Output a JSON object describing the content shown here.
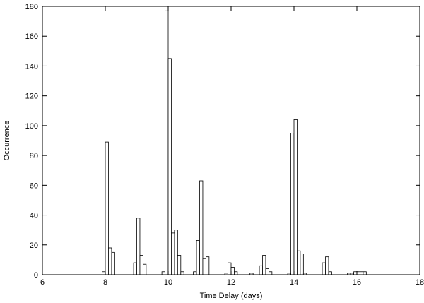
{
  "chart_data": {
    "type": "bar",
    "title": "",
    "xlabel": "Time Delay (days)",
    "ylabel": "Occurrence",
    "xlim": [
      6,
      18
    ],
    "ylim": [
      0,
      180
    ],
    "xticks": [
      6,
      8,
      10,
      12,
      14,
      16,
      18
    ],
    "yticks": [
      0,
      20,
      40,
      60,
      80,
      100,
      120,
      140,
      160,
      180
    ],
    "bin_width": 0.1,
    "grid": false,
    "legend": "none",
    "bar_color": "#ffffff",
    "bar_edge_color": "#000000",
    "bins": [
      {
        "x": 7.9,
        "y": 2
      },
      {
        "x": 8.0,
        "y": 89
      },
      {
        "x": 8.1,
        "y": 18
      },
      {
        "x": 8.2,
        "y": 15
      },
      {
        "x": 8.9,
        "y": 8
      },
      {
        "x": 9.0,
        "y": 38
      },
      {
        "x": 9.1,
        "y": 13
      },
      {
        "x": 9.2,
        "y": 7
      },
      {
        "x": 9.8,
        "y": 2
      },
      {
        "x": 9.9,
        "y": 177
      },
      {
        "x": 10.0,
        "y": 145
      },
      {
        "x": 10.1,
        "y": 28
      },
      {
        "x": 10.2,
        "y": 30
      },
      {
        "x": 10.3,
        "y": 13
      },
      {
        "x": 10.4,
        "y": 2
      },
      {
        "x": 10.8,
        "y": 2
      },
      {
        "x": 10.9,
        "y": 23
      },
      {
        "x": 11.0,
        "y": 63
      },
      {
        "x": 11.1,
        "y": 11
      },
      {
        "x": 11.2,
        "y": 12
      },
      {
        "x": 11.8,
        "y": 1
      },
      {
        "x": 11.9,
        "y": 8
      },
      {
        "x": 12.0,
        "y": 5
      },
      {
        "x": 12.1,
        "y": 2
      },
      {
        "x": 12.6,
        "y": 1
      },
      {
        "x": 12.9,
        "y": 6
      },
      {
        "x": 13.0,
        "y": 13
      },
      {
        "x": 13.1,
        "y": 4
      },
      {
        "x": 13.2,
        "y": 2
      },
      {
        "x": 13.8,
        "y": 1
      },
      {
        "x": 13.9,
        "y": 95
      },
      {
        "x": 14.0,
        "y": 104
      },
      {
        "x": 14.1,
        "y": 16
      },
      {
        "x": 14.2,
        "y": 14
      },
      {
        "x": 14.3,
        "y": 1
      },
      {
        "x": 14.9,
        "y": 8
      },
      {
        "x": 15.0,
        "y": 12
      },
      {
        "x": 15.1,
        "y": 2
      },
      {
        "x": 15.7,
        "y": 1
      },
      {
        "x": 15.8,
        "y": 1
      },
      {
        "x": 15.9,
        "y": 2
      },
      {
        "x": 16.0,
        "y": 2
      },
      {
        "x": 16.1,
        "y": 2
      },
      {
        "x": 16.2,
        "y": 2
      }
    ]
  }
}
